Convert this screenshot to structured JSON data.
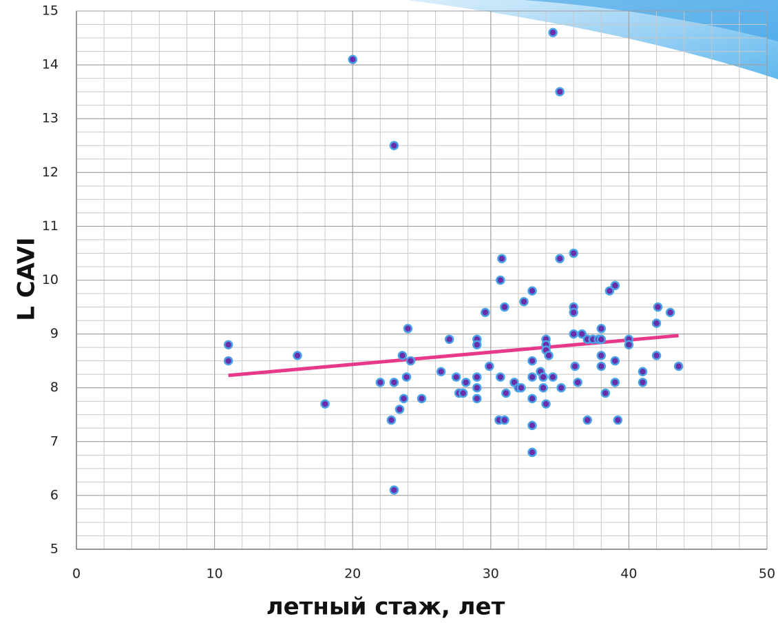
{
  "chart_data": {
    "type": "scatter",
    "xlabel": "летный стаж, лет",
    "ylabel": "L CAVI",
    "xlim": [
      0,
      50
    ],
    "ylim": [
      5,
      15
    ],
    "xticks": [
      0,
      10,
      20,
      30,
      40,
      50
    ],
    "yticks": [
      5,
      6,
      7,
      8,
      9,
      10,
      11,
      12,
      13,
      14,
      15
    ],
    "grid": true,
    "x_minor_step": 2,
    "y_minor_step": 0.25,
    "series": [
      {
        "color": "#6a2fa8",
        "edgecolor": "#4aa3e8",
        "x": [
          11,
          11,
          16,
          18,
          20,
          22,
          22.8,
          23,
          23,
          23,
          23.4,
          23.6,
          23.7,
          23.9,
          24,
          24.2,
          25,
          26.4,
          27,
          27.5,
          27.7,
          28,
          28.2,
          29,
          29,
          29,
          29,
          29,
          29.6,
          29.9,
          30.6,
          30.7,
          30.7,
          30.8,
          31,
          31,
          31.1,
          31.7,
          32,
          32.2,
          32.4,
          33,
          33,
          33,
          33,
          33,
          33,
          33.6,
          33.8,
          33.8,
          34,
          34,
          34,
          34,
          34.2,
          34.5,
          34.5,
          35,
          35,
          35.1,
          36,
          36,
          36,
          36,
          36.1,
          36.3,
          36.6,
          37,
          37,
          37.4,
          37.8,
          38,
          38,
          38,
          38,
          38.3,
          38.6,
          39,
          39,
          39,
          39.2,
          40,
          40,
          41,
          41,
          42,
          42,
          42.1,
          43,
          43.6
        ],
        "values": [
          8.8,
          8.5,
          8.6,
          7.7,
          14.1,
          8.1,
          7.4,
          12.5,
          8.1,
          6.1,
          7.6,
          8.6,
          7.8,
          8.2,
          9.1,
          8.5,
          7.8,
          8.3,
          8.9,
          8.2,
          7.9,
          7.9,
          8.1,
          8.9,
          8.8,
          8.2,
          8.0,
          7.8,
          9.4,
          8.4,
          7.4,
          8.2,
          10.0,
          10.4,
          7.4,
          9.5,
          7.9,
          8.1,
          8.0,
          8.0,
          9.6,
          9.8,
          8.5,
          8.2,
          7.8,
          7.3,
          6.8,
          8.3,
          8.0,
          8.2,
          8.9,
          8.8,
          8.7,
          7.7,
          8.6,
          8.2,
          14.6,
          13.5,
          10.4,
          8.0,
          10.5,
          9.5,
          9.4,
          9.0,
          8.4,
          8.1,
          9.0,
          8.9,
          7.4,
          8.9,
          8.9,
          9.1,
          8.9,
          8.6,
          8.4,
          7.9,
          9.8,
          9.9,
          8.5,
          8.1,
          7.4,
          8.9,
          8.8,
          8.3,
          8.1,
          9.2,
          8.6,
          9.5,
          9.4,
          8.4
        ]
      }
    ],
    "trendline": {
      "color": "#e8388a",
      "x": [
        11,
        43.6
      ],
      "values": [
        8.23,
        8.97
      ]
    }
  }
}
